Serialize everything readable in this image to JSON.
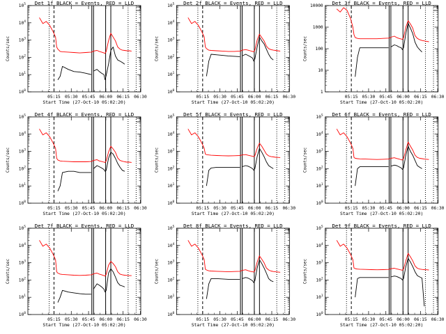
{
  "colors": {
    "events": "#000000",
    "lld": "#ff0000",
    "background": "#ffffff"
  },
  "x_tick_labels": [
    "05:15",
    "05:30",
    "05:45",
    "06:00",
    "06:15",
    "06:30"
  ],
  "x_label": "Start Time (27-Oct-10 05:02:20)",
  "y_label": "Counts/sec",
  "chart_data": [
    {
      "type": "line",
      "title": "Det 1f BLACK = Events, RED = LLD",
      "scale": "log",
      "ylim": [
        1,
        100000
      ],
      "y_tick_labels": [
        "10^0",
        "10^1",
        "10^2",
        "10^3",
        "10^4",
        "10^5"
      ],
      "x_minutes": [
        0,
        3,
        6,
        9,
        12,
        14,
        15,
        16,
        18,
        20,
        25,
        30,
        35,
        40,
        45,
        46,
        47,
        50,
        52,
        54,
        56,
        57,
        58,
        60,
        62,
        64,
        66,
        68,
        70,
        72,
        74,
        76,
        78,
        80
      ],
      "series": [
        {
          "name": "Events",
          "color": "black",
          "values": [
            null,
            null,
            null,
            null,
            null,
            null,
            null,
            5,
            8,
            30,
            20,
            15,
            14,
            12,
            10,
            null,
            16,
            20,
            15,
            12,
            10,
            5,
            9,
            40,
            250,
            400,
            120,
            70,
            60,
            50,
            40,
            null,
            null,
            null
          ]
        },
        {
          "name": "LLD",
          "color": "red",
          "values": [
            20000,
            9000,
            12000,
            7000,
            3000,
            1500,
            400,
            300,
            220,
            210,
            200,
            190,
            180,
            190,
            200,
            210,
            230,
            250,
            220,
            200,
            180,
            170,
            220,
            900,
            2500,
            1500,
            900,
            400,
            300,
            260,
            250,
            240,
            240,
            230
          ]
        }
      ]
    },
    {
      "type": "line",
      "title": "Det 2f BLACK = Events, RED = LLD",
      "scale": "log",
      "ylim": [
        1,
        100000
      ],
      "y_tick_labels": [
        "10^0",
        "10^1",
        "10^2",
        "10^3",
        "10^4",
        "10^5"
      ],
      "x_minutes": [
        0,
        3,
        6,
        9,
        12,
        14,
        15,
        16,
        18,
        20,
        25,
        30,
        35,
        40,
        45,
        46,
        47,
        50,
        52,
        54,
        56,
        57,
        58,
        60,
        62,
        64,
        66,
        68,
        70,
        72,
        74,
        76,
        78,
        80
      ],
      "series": [
        {
          "name": "Events",
          "color": "black",
          "values": [
            null,
            null,
            null,
            null,
            null,
            null,
            null,
            8,
            60,
            150,
            140,
            130,
            120,
            115,
            110,
            null,
            120,
            150,
            130,
            110,
            90,
            60,
            80,
            400,
            1500,
            900,
            600,
            300,
            150,
            90,
            70,
            null,
            null,
            null
          ]
        },
        {
          "name": "LLD",
          "color": "red",
          "values": [
            20000,
            9000,
            12000,
            7000,
            3000,
            1500,
            400,
            320,
            260,
            250,
            240,
            230,
            220,
            220,
            230,
            240,
            260,
            280,
            260,
            240,
            220,
            210,
            260,
            1000,
            2200,
            1400,
            900,
            450,
            320,
            280,
            260,
            250,
            240,
            230
          ]
        }
      ]
    },
    {
      "type": "line",
      "title": "Det 3f BLACK = Events, RED = LLD",
      "scale": "log",
      "ylim": [
        1,
        10000
      ],
      "y_tick_labels": [
        "1",
        "10",
        "100",
        "1000",
        "10000"
      ],
      "x_minutes": [
        0,
        3,
        6,
        9,
        12,
        14,
        15,
        16,
        18,
        20,
        25,
        30,
        35,
        40,
        45,
        46,
        47,
        50,
        52,
        54,
        56,
        57,
        58,
        60,
        62,
        64,
        66,
        68,
        70,
        72,
        74,
        76,
        78,
        80
      ],
      "series": [
        {
          "name": "Events",
          "color": "black",
          "values": [
            null,
            null,
            null,
            null,
            null,
            null,
            null,
            5,
            40,
            110,
            110,
            110,
            110,
            110,
            110,
            null,
            120,
            150,
            140,
            120,
            110,
            90,
            110,
            500,
            1500,
            900,
            500,
            200,
            120,
            90,
            70,
            null,
            null,
            null
          ]
        },
        {
          "name": "LLD",
          "color": "red",
          "values": [
            7000,
            5000,
            8000,
            6000,
            2500,
            1000,
            450,
            330,
            300,
            290,
            290,
            290,
            290,
            300,
            310,
            320,
            340,
            380,
            330,
            300,
            280,
            270,
            320,
            1000,
            2000,
            1400,
            900,
            400,
            300,
            260,
            240,
            230,
            220,
            210
          ]
        }
      ]
    },
    {
      "type": "line",
      "title": "Det 4f BLACK = Events, RED = LLD",
      "scale": "log",
      "ylim": [
        1,
        100000
      ],
      "y_tick_labels": [
        "10^0",
        "10^1",
        "10^2",
        "10^3",
        "10^4",
        "10^5"
      ],
      "x_minutes": [
        0,
        3,
        6,
        9,
        12,
        14,
        15,
        16,
        18,
        20,
        25,
        30,
        35,
        40,
        45,
        46,
        47,
        50,
        52,
        54,
        56,
        57,
        58,
        60,
        62,
        64,
        66,
        68,
        70,
        72,
        74,
        76,
        78,
        80
      ],
      "series": [
        {
          "name": "Events",
          "color": "black",
          "values": [
            null,
            null,
            null,
            null,
            null,
            null,
            null,
            5,
            10,
            60,
            70,
            70,
            60,
            60,
            60,
            null,
            100,
            150,
            130,
            110,
            90,
            70,
            80,
            400,
            900,
            700,
            400,
            200,
            120,
            80,
            70,
            null,
            null,
            null
          ]
        },
        {
          "name": "LLD",
          "color": "red",
          "values": [
            20000,
            9000,
            12000,
            7000,
            3000,
            1500,
            400,
            320,
            280,
            270,
            260,
            250,
            250,
            250,
            260,
            280,
            300,
            330,
            280,
            260,
            240,
            230,
            280,
            900,
            2000,
            1400,
            900,
            420,
            300,
            270,
            250,
            240,
            240,
            230
          ]
        }
      ]
    },
    {
      "type": "line",
      "title": "Det 5f BLACK = Events, RED = LLD",
      "scale": "log",
      "ylim": [
        1,
        100000
      ],
      "y_tick_labels": [
        "10^0",
        "10^1",
        "10^2",
        "10^3",
        "10^4",
        "10^5"
      ],
      "x_minutes": [
        0,
        3,
        6,
        9,
        12,
        14,
        15,
        16,
        18,
        20,
        25,
        30,
        35,
        40,
        45,
        46,
        47,
        50,
        52,
        54,
        56,
        57,
        58,
        60,
        62,
        64,
        66,
        68,
        70,
        72,
        74,
        76,
        78,
        80
      ],
      "series": [
        {
          "name": "Events",
          "color": "black",
          "values": [
            null,
            null,
            null,
            null,
            null,
            null,
            null,
            10,
            80,
            110,
            120,
            120,
            120,
            120,
            120,
            null,
            130,
            150,
            140,
            120,
            100,
            80,
            100,
            500,
            1500,
            900,
            500,
            250,
            150,
            120,
            100,
            null,
            null,
            null
          ]
        },
        {
          "name": "LLD",
          "color": "red",
          "values": [
            20000,
            9000,
            12000,
            7000,
            3000,
            1500,
            700,
            650,
            620,
            600,
            580,
            560,
            550,
            560,
            580,
            600,
            620,
            650,
            600,
            560,
            520,
            500,
            560,
            1500,
            3000,
            2000,
            1200,
            700,
            550,
            500,
            480,
            460,
            450,
            440
          ]
        }
      ]
    },
    {
      "type": "line",
      "title": "Det 6f BLACK = Events, RED = LLD",
      "scale": "log",
      "ylim": [
        1,
        100000
      ],
      "y_tick_labels": [
        "10^0",
        "10^1",
        "10^2",
        "10^3",
        "10^4",
        "10^5"
      ],
      "x_minutes": [
        0,
        3,
        6,
        9,
        12,
        14,
        15,
        16,
        18,
        20,
        25,
        30,
        35,
        40,
        45,
        46,
        47,
        50,
        52,
        54,
        56,
        57,
        58,
        60,
        62,
        64,
        66,
        68,
        70,
        72,
        74,
        76,
        78,
        80
      ],
      "series": [
        {
          "name": "Events",
          "color": "black",
          "values": [
            null,
            null,
            null,
            null,
            null,
            null,
            null,
            10,
            100,
            130,
            130,
            130,
            130,
            130,
            130,
            null,
            140,
            160,
            150,
            130,
            110,
            90,
            110,
            600,
            2000,
            1000,
            600,
            300,
            150,
            120,
            100,
            null,
            null,
            null
          ]
        },
        {
          "name": "LLD",
          "color": "red",
          "values": [
            20000,
            9000,
            12000,
            7000,
            3000,
            1500,
            450,
            400,
            380,
            370,
            360,
            350,
            340,
            350,
            360,
            380,
            400,
            430,
            390,
            360,
            330,
            320,
            380,
            1200,
            3500,
            2000,
            1200,
            600,
            450,
            400,
            380,
            360,
            350,
            340
          ]
        }
      ]
    },
    {
      "type": "line",
      "title": "Det 7f BLACK = Events, RED = LLD",
      "scale": "log",
      "ylim": [
        1,
        100000
      ],
      "y_tick_labels": [
        "10^0",
        "10^1",
        "10^2",
        "10^3",
        "10^4",
        "10^5"
      ],
      "x_minutes": [
        0,
        3,
        6,
        9,
        12,
        14,
        15,
        16,
        18,
        20,
        25,
        30,
        35,
        40,
        45,
        46,
        47,
        50,
        52,
        54,
        56,
        57,
        58,
        60,
        62,
        64,
        66,
        68,
        70,
        72,
        74,
        76,
        78,
        80
      ],
      "series": [
        {
          "name": "Events",
          "color": "black",
          "values": [
            null,
            null,
            null,
            null,
            null,
            null,
            null,
            5,
            10,
            25,
            20,
            18,
            16,
            15,
            15,
            null,
            30,
            60,
            50,
            40,
            30,
            20,
            25,
            250,
            450,
            300,
            150,
            70,
            50,
            45,
            40,
            null,
            null,
            null
          ]
        },
        {
          "name": "LLD",
          "color": "red",
          "values": [
            20000,
            9000,
            12000,
            7000,
            3000,
            1500,
            300,
            250,
            220,
            210,
            200,
            190,
            185,
            190,
            200,
            210,
            230,
            250,
            220,
            200,
            180,
            170,
            210,
            700,
            1200,
            900,
            600,
            300,
            220,
            200,
            190,
            185,
            180,
            180
          ]
        }
      ]
    },
    {
      "type": "line",
      "title": "Det 8f BLACK = Events, RED = LLD",
      "scale": "log",
      "ylim": [
        1,
        100000
      ],
      "y_tick_labels": [
        "10^0",
        "10^1",
        "10^2",
        "10^3",
        "10^4",
        "10^5"
      ],
      "x_minutes": [
        0,
        3,
        6,
        9,
        12,
        14,
        15,
        16,
        18,
        20,
        25,
        30,
        35,
        40,
        45,
        46,
        47,
        50,
        52,
        54,
        56,
        57,
        58,
        60,
        62,
        64,
        66,
        68,
        70,
        72,
        74,
        76,
        78,
        80
      ],
      "series": [
        {
          "name": "Events",
          "color": "black",
          "values": [
            null,
            null,
            null,
            null,
            null,
            null,
            null,
            8,
            60,
            120,
            120,
            115,
            110,
            110,
            110,
            null,
            120,
            140,
            130,
            110,
            90,
            70,
            90,
            500,
            1500,
            900,
            500,
            250,
            120,
            90,
            80,
            null,
            null,
            null
          ]
        },
        {
          "name": "LLD",
          "color": "red",
          "values": [
            20000,
            9000,
            12000,
            7000,
            3000,
            1500,
            420,
            380,
            340,
            330,
            320,
            310,
            300,
            310,
            320,
            340,
            360,
            390,
            350,
            320,
            300,
            290,
            340,
            1100,
            2500,
            1600,
            1000,
            500,
            380,
            330,
            310,
            300,
            290,
            280
          ]
        }
      ]
    },
    {
      "type": "line",
      "title": "Det 9f BLACK = Events, RED = LLD",
      "scale": "log",
      "ylim": [
        1,
        100000
      ],
      "y_tick_labels": [
        "10^0",
        "10^1",
        "10^2",
        "10^3",
        "10^4",
        "10^5"
      ],
      "x_minutes": [
        0,
        3,
        6,
        9,
        12,
        14,
        15,
        16,
        18,
        20,
        25,
        30,
        35,
        40,
        45,
        46,
        47,
        50,
        52,
        54,
        56,
        57,
        58,
        60,
        62,
        64,
        66,
        68,
        70,
        72,
        74,
        76,
        78,
        80
      ],
      "series": [
        {
          "name": "Events",
          "color": "black",
          "values": [
            null,
            null,
            null,
            null,
            null,
            null,
            null,
            10,
            120,
            140,
            140,
            140,
            140,
            140,
            140,
            null,
            150,
            170,
            160,
            140,
            120,
            100,
            120,
            600,
            1800,
            1100,
            600,
            300,
            180,
            150,
            130,
            3,
            null,
            null
          ]
        },
        {
          "name": "LLD",
          "color": "red",
          "values": [
            20000,
            9000,
            12000,
            7000,
            3000,
            1500,
            500,
            460,
            430,
            420,
            410,
            400,
            390,
            400,
            410,
            430,
            450,
            480,
            440,
            410,
            380,
            370,
            430,
            1300,
            3500,
            2200,
            1300,
            650,
            480,
            430,
            410,
            400,
            390,
            380
          ]
        }
      ]
    }
  ]
}
